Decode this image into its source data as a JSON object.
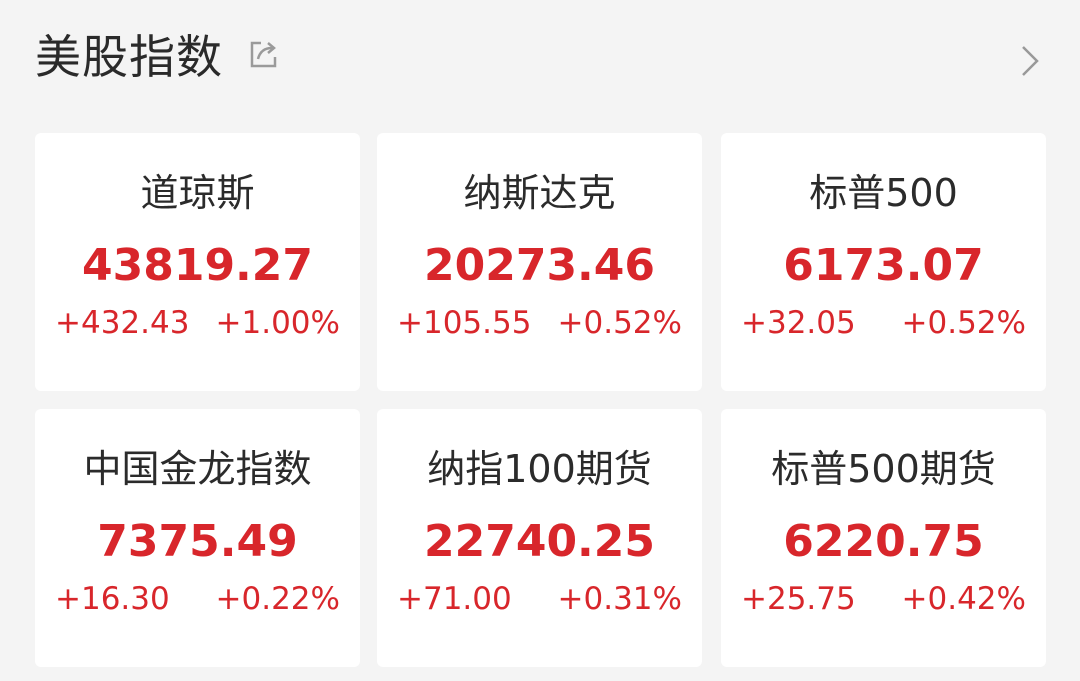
{
  "header": {
    "title": "美股指数",
    "share_icon": "share-icon",
    "more_icon": "chevron-right-icon"
  },
  "colors": {
    "up": "#d8262b",
    "background": "#f4f4f4",
    "card": "#ffffff"
  },
  "indices": [
    {
      "name": "道琼斯",
      "value": "43819.27",
      "change": "+432.43",
      "percent": "+1.00%"
    },
    {
      "name": "纳斯达克",
      "value": "20273.46",
      "change": "+105.55",
      "percent": "+0.52%"
    },
    {
      "name": "标普500",
      "value": "6173.07",
      "change": "+32.05",
      "percent": "+0.52%"
    },
    {
      "name": "中国金龙指数",
      "value": "7375.49",
      "change": "+16.30",
      "percent": "+0.22%"
    },
    {
      "name": "纳指100期货",
      "value": "22740.25",
      "change": "+71.00",
      "percent": "+0.31%"
    },
    {
      "name": "标普500期货",
      "value": "6220.75",
      "change": "+25.75",
      "percent": "+0.42%"
    }
  ]
}
